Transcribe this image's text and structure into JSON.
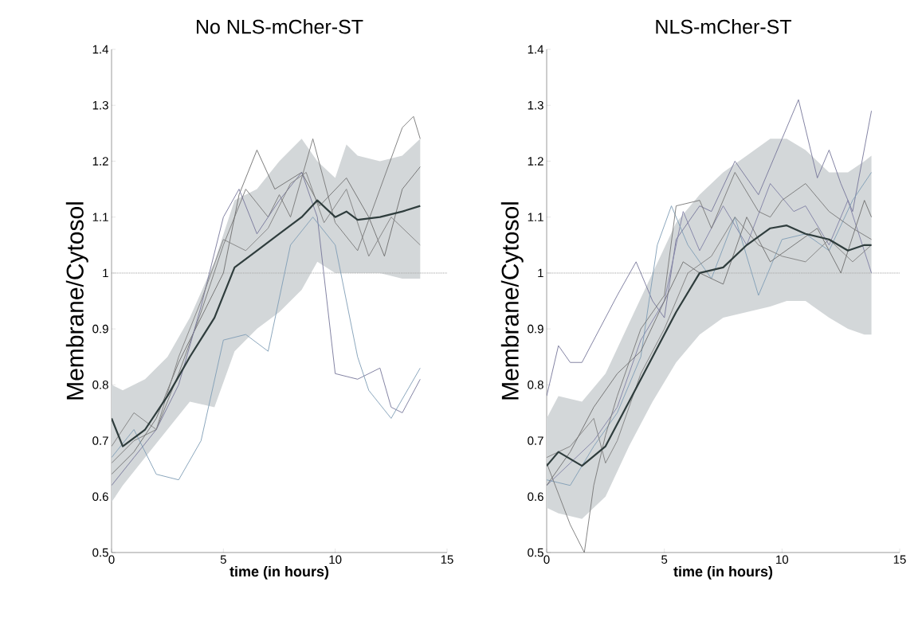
{
  "chart_data": [
    {
      "type": "line",
      "title": "No NLS-mCher-ST",
      "xlabel": "time (in hours)",
      "ylabel": "Membrane/Cytosol",
      "xlim": [
        0,
        15
      ],
      "ylim": [
        0.5,
        1.4
      ],
      "xticks": [
        0,
        5,
        10,
        15
      ],
      "yticks": [
        0.5,
        0.6,
        0.7,
        0.8,
        0.9,
        1,
        1.1,
        1.2,
        1.3,
        1.4
      ],
      "grid": false,
      "marker": "none",
      "line_style": "solid",
      "ref_lines": [
        {
          "axis": "y",
          "value": 1,
          "color": "#aaaaaa",
          "line_style": "dotted"
        }
      ],
      "series": [
        {
          "color": "#777777",
          "x": [
            0,
            1,
            2,
            3,
            4,
            5,
            6,
            7,
            7.5,
            8,
            9,
            10,
            11,
            12,
            13,
            13.5,
            13.8
          ],
          "values": [
            0.66,
            0.7,
            0.72,
            0.82,
            0.93,
            1.05,
            1.15,
            1.1,
            1.14,
            1.1,
            1.24,
            1.09,
            1.04,
            1.15,
            1.26,
            1.28,
            1.24
          ]
        },
        {
          "color": "#6e6e6e",
          "x": [
            0,
            1,
            2,
            3,
            4,
            5,
            5.7,
            6.5,
            7.3,
            8.5,
            9.3,
            10.5,
            11.5,
            12.2,
            13,
            13.8
          ],
          "values": [
            0.64,
            0.68,
            0.74,
            0.84,
            0.92,
            1.0,
            1.14,
            1.22,
            1.15,
            1.18,
            1.12,
            1.17,
            1.1,
            1.03,
            1.15,
            1.19
          ]
        },
        {
          "color": "#76769a",
          "x": [
            0,
            1,
            2,
            3,
            4,
            5,
            5.7,
            6.5,
            7.5,
            8.5,
            9.2,
            10,
            11,
            12,
            12.5,
            13,
            13.8
          ],
          "values": [
            0.62,
            0.67,
            0.72,
            0.8,
            0.94,
            1.1,
            1.15,
            1.07,
            1.13,
            1.18,
            1.1,
            0.82,
            0.81,
            0.83,
            0.76,
            0.75,
            0.81
          ]
        },
        {
          "color": "#7f9db5",
          "x": [
            0,
            1,
            2,
            3,
            4,
            5,
            6,
            7,
            8,
            9,
            10,
            11,
            11.5,
            12.5,
            13.8
          ],
          "values": [
            0.67,
            0.72,
            0.64,
            0.63,
            0.7,
            0.88,
            0.89,
            0.86,
            1.05,
            1.1,
            1.05,
            0.85,
            0.79,
            0.74,
            0.83
          ]
        },
        {
          "color": "#808080",
          "x": [
            0,
            1,
            2,
            3,
            4,
            5,
            6,
            7,
            8,
            8.7,
            9.5,
            10.5,
            11.5,
            12.5,
            13.8
          ],
          "values": [
            0.69,
            0.75,
            0.72,
            0.85,
            0.95,
            1.06,
            1.04,
            1.08,
            1.16,
            1.18,
            1.09,
            1.15,
            1.03,
            1.1,
            1.05
          ]
        },
        {
          "color": "#2f3d3d",
          "x": [
            0,
            0.5,
            1.5,
            2.5,
            3.5,
            4.6,
            5.5,
            6.5,
            7.5,
            8.5,
            9.2,
            10,
            10.5,
            11,
            12,
            13,
            13.8
          ],
          "values": [
            0.74,
            0.69,
            0.72,
            0.78,
            0.85,
            0.92,
            1.01,
            1.04,
            1.07,
            1.1,
            1.13,
            1.1,
            1.11,
            1.095,
            1.1,
            1.11,
            1.12
          ],
          "lower": [
            0.59,
            0.62,
            0.67,
            0.72,
            0.77,
            0.76,
            0.86,
            0.9,
            0.93,
            0.97,
            1.02,
            1.0,
            1.0,
            1.0,
            1.0,
            0.99,
            0.99
          ],
          "upper": [
            0.8,
            0.79,
            0.81,
            0.85,
            0.92,
            1.02,
            1.13,
            1.15,
            1.2,
            1.24,
            1.2,
            1.17,
            1.23,
            1.21,
            1.2,
            1.21,
            1.24
          ]
        }
      ]
    },
    {
      "type": "line",
      "title": "NLS-mCher-ST",
      "xlabel": "time (in hours)",
      "ylabel": "Membrane/Cytosol",
      "xlim": [
        0,
        15
      ],
      "ylim": [
        0.5,
        1.4
      ],
      "xticks": [
        0,
        5,
        10,
        15
      ],
      "yticks": [
        0.5,
        0.6,
        0.7,
        0.8,
        0.9,
        1,
        1.1,
        1.2,
        1.3,
        1.4
      ],
      "grid": false,
      "marker": "none",
      "line_style": "solid",
      "ref_lines": [
        {
          "axis": "y",
          "value": 1,
          "color": "#aaaaaa",
          "line_style": "dotted"
        }
      ],
      "series": [
        {
          "color": "#76769a",
          "x": [
            0,
            0.5,
            1,
            1.5,
            2.5,
            3,
            3.8,
            4.5,
            5,
            5.5,
            6.5,
            7,
            8,
            9,
            10,
            10.7,
            11.5,
            12,
            12.5,
            13,
            13.8
          ],
          "values": [
            0.78,
            0.87,
            0.84,
            0.84,
            0.92,
            0.96,
            1.02,
            0.95,
            0.92,
            1.06,
            1.12,
            1.11,
            1.2,
            1.14,
            1.24,
            1.31,
            1.17,
            1.22,
            1.16,
            1.11,
            1.29
          ]
        },
        {
          "color": "#8080a5",
          "x": [
            0,
            1,
            2,
            3,
            4,
            5,
            5.8,
            6.5,
            7.5,
            8.5,
            9.5,
            10.5,
            11,
            12,
            12.8,
            13.8
          ],
          "values": [
            0.62,
            0.66,
            0.7,
            0.76,
            0.88,
            0.95,
            1.11,
            1.04,
            1.12,
            1.05,
            1.16,
            1.11,
            1.12,
            1.05,
            1.13,
            1.0
          ]
        },
        {
          "color": "#7f9db5",
          "x": [
            0,
            1,
            2,
            3,
            4,
            4.7,
            5.3,
            6,
            7,
            8,
            9,
            10,
            11,
            12,
            13,
            13.8
          ],
          "values": [
            0.63,
            0.62,
            0.69,
            0.75,
            0.85,
            1.05,
            1.12,
            1.05,
            0.99,
            1.1,
            0.96,
            1.06,
            1.07,
            1.04,
            1.13,
            1.18
          ]
        },
        {
          "color": "#777777",
          "x": [
            0,
            1,
            1.6,
            2,
            2.5,
            3,
            4,
            5,
            5.5,
            6.5,
            7,
            8,
            9,
            9.5,
            10,
            11,
            12,
            13,
            13.8
          ],
          "values": [
            0.66,
            0.55,
            0.5,
            0.62,
            0.71,
            0.78,
            0.9,
            0.96,
            1.12,
            1.13,
            1.08,
            1.18,
            1.11,
            1.1,
            1.13,
            1.16,
            1.11,
            1.08,
            1.06
          ]
        },
        {
          "color": "#808080",
          "x": [
            0,
            1,
            2,
            2.5,
            3,
            4,
            5,
            6,
            7,
            8,
            9,
            10,
            11,
            12,
            13,
            13.8
          ],
          "values": [
            0.67,
            0.69,
            0.74,
            0.66,
            0.7,
            0.82,
            0.9,
            1.0,
            1.03,
            1.1,
            1.05,
            1.03,
            1.02,
            1.06,
            1.02,
            1.05
          ]
        },
        {
          "color": "#6e6e6e",
          "x": [
            0,
            1,
            2,
            3,
            4,
            5,
            5.8,
            6.5,
            7.5,
            8.5,
            9.5,
            10.5,
            11.5,
            12.5,
            13.5,
            13.8
          ],
          "values": [
            0.62,
            0.68,
            0.76,
            0.82,
            0.86,
            0.95,
            1.02,
            1.0,
            0.98,
            1.1,
            1.02,
            1.05,
            1.08,
            1.0,
            1.13,
            1.1
          ]
        },
        {
          "color": "#2f3d3d",
          "x": [
            0,
            0.5,
            1.5,
            2.5,
            3.5,
            4.5,
            5.5,
            6.5,
            7.5,
            8.5,
            9.5,
            10.2,
            11,
            12,
            12.8,
            13.5,
            13.8
          ],
          "values": [
            0.655,
            0.68,
            0.655,
            0.69,
            0.77,
            0.85,
            0.93,
            1.0,
            1.01,
            1.05,
            1.08,
            1.085,
            1.07,
            1.06,
            1.04,
            1.05,
            1.05
          ],
          "lower": [
            0.58,
            0.57,
            0.56,
            0.6,
            0.69,
            0.77,
            0.84,
            0.89,
            0.92,
            0.93,
            0.94,
            0.95,
            0.95,
            0.92,
            0.9,
            0.89,
            0.89
          ],
          "upper": [
            0.74,
            0.78,
            0.77,
            0.82,
            0.91,
            1.0,
            1.09,
            1.14,
            1.18,
            1.21,
            1.24,
            1.24,
            1.22,
            1.18,
            1.18,
            1.2,
            1.21
          ]
        }
      ]
    }
  ]
}
